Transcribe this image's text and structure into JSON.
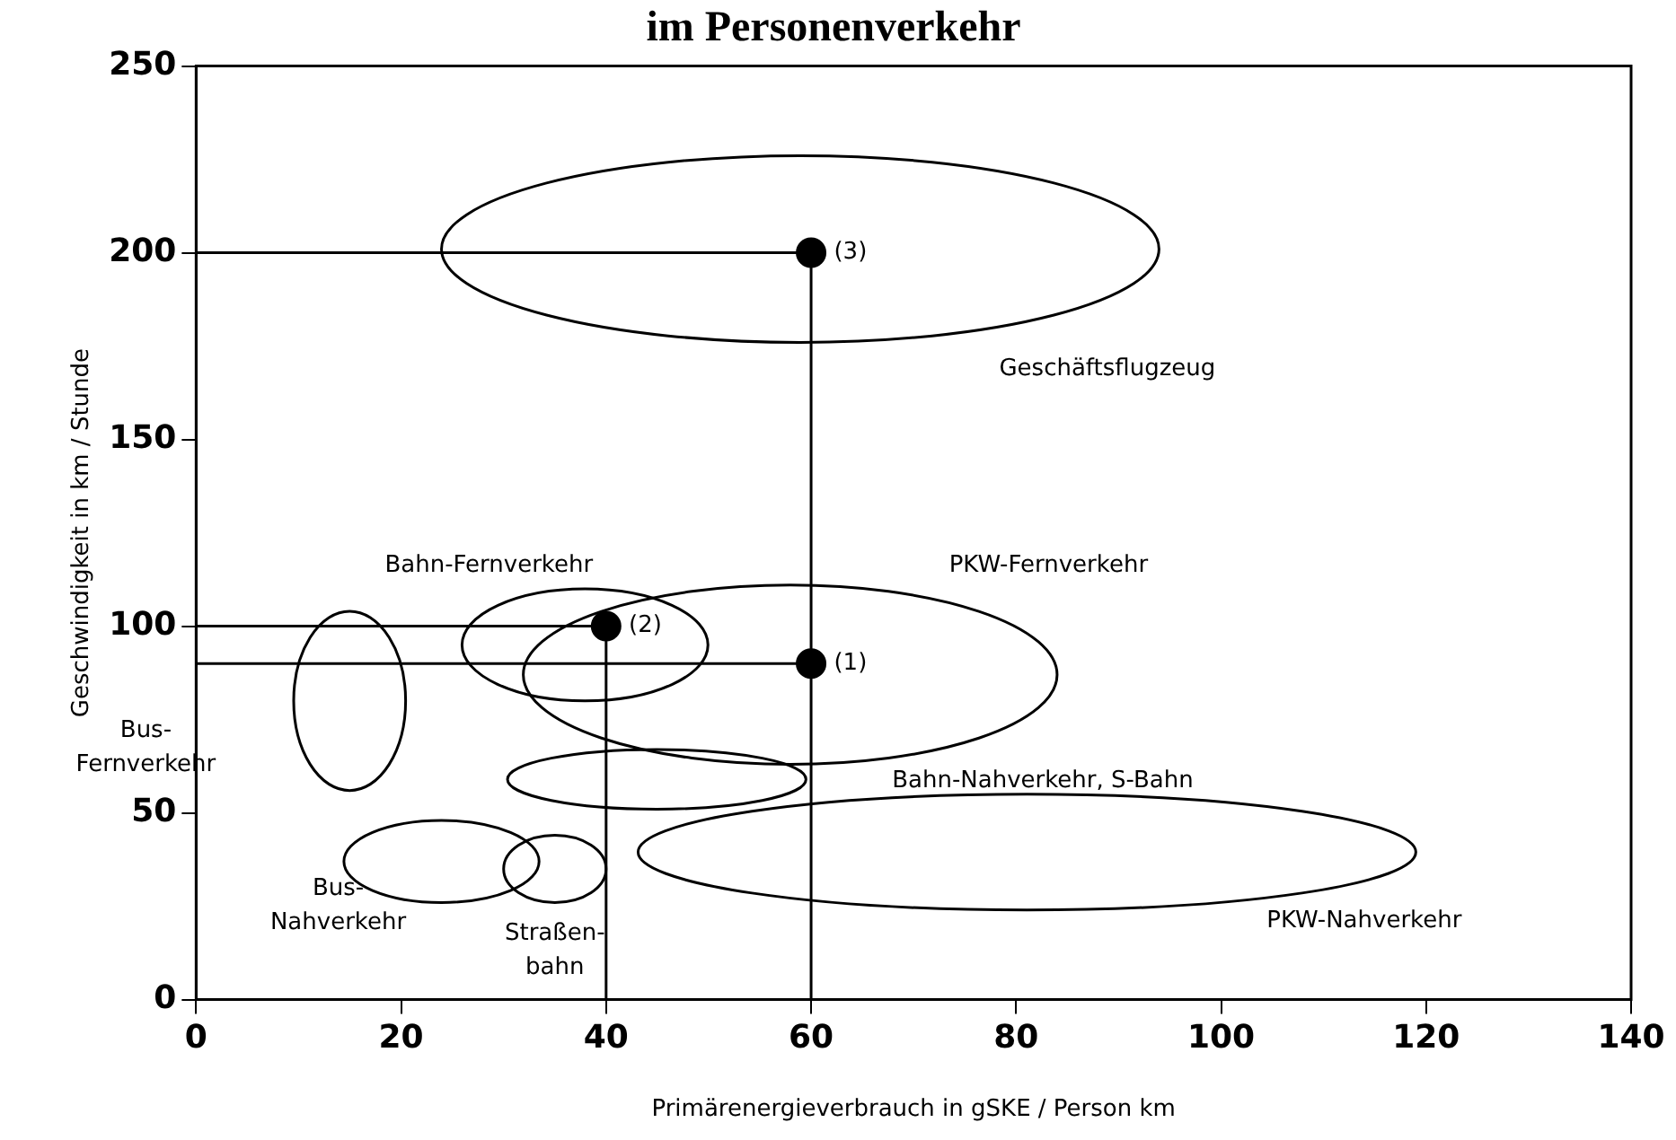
{
  "chart_data": {
    "type": "scatter",
    "title": "im Personenverkehr",
    "xlabel": "Primärenergieverbrauch in gSKE / Person km",
    "ylabel": "Geschwindigkeit in km / Stunde",
    "xlim": [
      0,
      140
    ],
    "xticks": [
      0,
      20,
      40,
      60,
      80,
      100,
      120,
      140
    ],
    "ylim": [
      0,
      250
    ],
    "yticks": [
      0,
      50,
      100,
      150,
      200,
      250
    ],
    "grid": false,
    "legend": false,
    "marker": "none",
    "series": [
      {
        "type": "line",
        "color": "#000000",
        "x": [
          0,
          60
        ],
        "values": [
          200,
          200
        ]
      },
      {
        "type": "line",
        "color": "#000000",
        "x": [
          60,
          60
        ],
        "values": [
          0,
          200
        ]
      },
      {
        "type": "line",
        "color": "#000000",
        "x": [
          0,
          40
        ],
        "values": [
          100,
          100
        ]
      },
      {
        "type": "line",
        "color": "#000000",
        "x": [
          40,
          40
        ],
        "values": [
          0,
          100
        ]
      },
      {
        "type": "line",
        "color": "#000000",
        "x": [
          0,
          60
        ],
        "values": [
          90,
          90
        ]
      },
      {
        "marker": "circle",
        "color": "#000000",
        "x": [
          60,
          40,
          60
        ],
        "values": [
          90,
          100,
          200
        ]
      }
    ],
    "annotations": [
      "Geschäftsflugzeug",
      "Bahn-Fernverkehr",
      "PKW-Fernverkehr",
      "Bus-\nFernverkehr",
      "Bahn-Nahverkehr, S-Bahn",
      "Bus-\nNahverkehr",
      "Straßen-\nbahn",
      "PKW-Nahverkehr",
      "(1)",
      "(2)",
      "(3)"
    ]
  }
}
